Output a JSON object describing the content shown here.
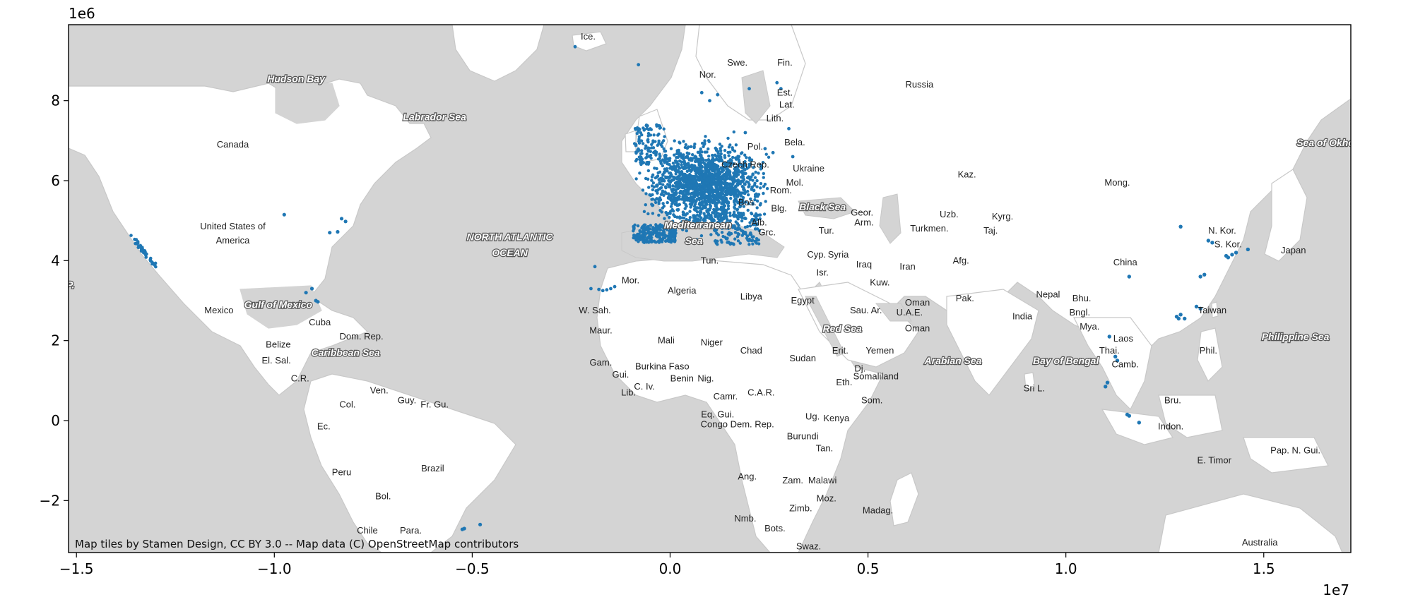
{
  "map": {
    "attribution": "Map tiles by Stamen Design, CC BY 3.0 -- Map data (C) OpenStreetMap contributors",
    "x_offset_text": "1e7",
    "y_offset_text": "1e6",
    "xlim": [
      -1.52,
      1.72
    ],
    "ylim": [
      -3.3,
      9.9
    ],
    "colors": {
      "ocean": "#d4d4d4",
      "land": "#ffffff",
      "border": "#c8c8c8",
      "points": "#1f77b4"
    },
    "x_ticks": [
      {
        "value": -1.5,
        "label": "−1.5"
      },
      {
        "value": -1.0,
        "label": "−1.0"
      },
      {
        "value": -0.5,
        "label": "−0.5"
      },
      {
        "value": 0.0,
        "label": "0.0"
      },
      {
        "value": 0.5,
        "label": "0.5"
      },
      {
        "value": 1.0,
        "label": "1.0"
      },
      {
        "value": 1.5,
        "label": "1.5"
      }
    ],
    "y_ticks": [
      {
        "value": 8,
        "label": "8"
      },
      {
        "value": 6,
        "label": "6"
      },
      {
        "value": 4,
        "label": "4"
      },
      {
        "value": 2,
        "label": "2"
      },
      {
        "value": 0,
        "label": "0"
      },
      {
        "value": -2,
        "label": "−2"
      }
    ],
    "country_labels": [
      {
        "text": "Ice.",
        "x": -0.207,
        "y": 9.6
      },
      {
        "text": "Nor.",
        "x": 0.095,
        "y": 8.65
      },
      {
        "text": "Swe.",
        "x": 0.17,
        "y": 8.95
      },
      {
        "text": "Fin.",
        "x": 0.29,
        "y": 8.95
      },
      {
        "text": "Russia",
        "x": 0.63,
        "y": 8.4
      },
      {
        "text": "Est.",
        "x": 0.29,
        "y": 8.2
      },
      {
        "text": "Lat.",
        "x": 0.295,
        "y": 7.9
      },
      {
        "text": "Lith.",
        "x": 0.265,
        "y": 7.55
      },
      {
        "text": "Canada",
        "x": -1.105,
        "y": 6.9
      },
      {
        "text": "Pol.",
        "x": 0.215,
        "y": 6.85
      },
      {
        "text": "Bela.",
        "x": 0.315,
        "y": 6.95
      },
      {
        "text": "Czech Rep.",
        "x": 0.19,
        "y": 6.4
      },
      {
        "text": "Ukraine",
        "x": 0.35,
        "y": 6.3
      },
      {
        "text": "Mol.",
        "x": 0.315,
        "y": 5.95
      },
      {
        "text": "Rom.",
        "x": 0.28,
        "y": 5.75
      },
      {
        "text": "Bos.",
        "x": 0.195,
        "y": 5.45
      },
      {
        "text": "Blg.",
        "x": 0.275,
        "y": 5.3
      },
      {
        "text": "Alb.",
        "x": 0.225,
        "y": 4.95
      },
      {
        "text": "Grc.",
        "x": 0.245,
        "y": 4.7
      },
      {
        "text": "Kaz.",
        "x": 0.75,
        "y": 6.15
      },
      {
        "text": "Mong.",
        "x": 1.13,
        "y": 5.95
      },
      {
        "text": "Geor.",
        "x": 0.485,
        "y": 5.2
      },
      {
        "text": "Arm.",
        "x": 0.49,
        "y": 4.95
      },
      {
        "text": "Uzb.",
        "x": 0.705,
        "y": 5.15
      },
      {
        "text": "Kyrg.",
        "x": 0.84,
        "y": 5.1
      },
      {
        "text": "Turkmen.",
        "x": 0.655,
        "y": 4.8
      },
      {
        "text": "Taj.",
        "x": 0.81,
        "y": 4.75
      },
      {
        "text": "Tur.",
        "x": 0.395,
        "y": 4.75
      },
      {
        "text": "Cyp.",
        "x": 0.37,
        "y": 4.15
      },
      {
        "text": "Syria",
        "x": 0.425,
        "y": 4.15
      },
      {
        "text": "Isr.",
        "x": 0.385,
        "y": 3.7
      },
      {
        "text": "Iraq",
        "x": 0.49,
        "y": 3.9
      },
      {
        "text": "Iran",
        "x": 0.6,
        "y": 3.85
      },
      {
        "text": "Afg.",
        "x": 0.735,
        "y": 4.0
      },
      {
        "text": "Kuw.",
        "x": 0.53,
        "y": 3.45
      },
      {
        "text": "Pak.",
        "x": 0.745,
        "y": 3.05
      },
      {
        "text": "China",
        "x": 1.15,
        "y": 3.95
      },
      {
        "text": "N. Kor.",
        "x": 1.395,
        "y": 4.75
      },
      {
        "text": "S. Kor.",
        "x": 1.41,
        "y": 4.4
      },
      {
        "text": "Japan",
        "x": 1.575,
        "y": 4.25
      },
      {
        "text": "United States of",
        "x": -1.105,
        "y": 4.85
      },
      {
        "text": "America",
        "x": -1.105,
        "y": 4.5
      },
      {
        "text": "Mor.",
        "x": -0.1,
        "y": 3.5
      },
      {
        "text": "Algeria",
        "x": 0.03,
        "y": 3.25
      },
      {
        "text": "Libya",
        "x": 0.205,
        "y": 3.1
      },
      {
        "text": "Egypt",
        "x": 0.335,
        "y": 3.0
      },
      {
        "text": "Tun.",
        "x": 0.1,
        "y": 4.0
      },
      {
        "text": "Sau. Ar.",
        "x": 0.495,
        "y": 2.75
      },
      {
        "text": "Oman",
        "x": 0.625,
        "y": 2.95
      },
      {
        "text": "U.A.E.",
        "x": 0.605,
        "y": 2.7
      },
      {
        "text": "Oman",
        "x": 0.625,
        "y": 2.3
      },
      {
        "text": "Yemen",
        "x": 0.53,
        "y": 1.75
      },
      {
        "text": "Nepal",
        "x": 0.955,
        "y": 3.15
      },
      {
        "text": "Bhu.",
        "x": 1.04,
        "y": 3.05
      },
      {
        "text": "India",
        "x": 0.89,
        "y": 2.6
      },
      {
        "text": "Bngl.",
        "x": 1.035,
        "y": 2.7
      },
      {
        "text": "Mya.",
        "x": 1.06,
        "y": 2.35
      },
      {
        "text": "Laos",
        "x": 1.145,
        "y": 2.05
      },
      {
        "text": "Thai.",
        "x": 1.11,
        "y": 1.75
      },
      {
        "text": "Camb.",
        "x": 1.15,
        "y": 1.4
      },
      {
        "text": "Taiwan",
        "x": 1.37,
        "y": 2.75
      },
      {
        "text": "Phil.",
        "x": 1.36,
        "y": 1.75
      },
      {
        "text": "Sri L.",
        "x": 0.92,
        "y": 0.8
      },
      {
        "text": "Bru.",
        "x": 1.27,
        "y": 0.5
      },
      {
        "text": "Indon.",
        "x": 1.265,
        "y": -0.15
      },
      {
        "text": "E. Timor",
        "x": 1.375,
        "y": -1.0
      },
      {
        "text": "Pap. N. Gui.",
        "x": 1.58,
        "y": -0.75
      },
      {
        "text": "Australia",
        "x": 1.49,
        "y": -3.05
      },
      {
        "text": "Mexico",
        "x": -1.14,
        "y": 2.75
      },
      {
        "text": "Cuba",
        "x": -0.885,
        "y": 2.45
      },
      {
        "text": "Dom. Rep.",
        "x": -0.78,
        "y": 2.1
      },
      {
        "text": "Belize",
        "x": -0.99,
        "y": 1.9
      },
      {
        "text": "El. Sal.",
        "x": -0.995,
        "y": 1.5
      },
      {
        "text": "C.R.",
        "x": -0.935,
        "y": 1.05
      },
      {
        "text": "Ven.",
        "x": -0.735,
        "y": 0.75
      },
      {
        "text": "Guy.",
        "x": -0.665,
        "y": 0.5
      },
      {
        "text": "Fr. Gu.",
        "x": -0.595,
        "y": 0.4
      },
      {
        "text": "Col.",
        "x": -0.815,
        "y": 0.4
      },
      {
        "text": "Ec.",
        "x": -0.875,
        "y": -0.15
      },
      {
        "text": "Brazil",
        "x": -0.6,
        "y": -1.2
      },
      {
        "text": "Peru",
        "x": -0.83,
        "y": -1.3
      },
      {
        "text": "Bol.",
        "x": -0.725,
        "y": -1.9
      },
      {
        "text": "Chile",
        "x": -0.765,
        "y": -2.75
      },
      {
        "text": "Para.",
        "x": -0.655,
        "y": -2.75
      },
      {
        "text": "W. Sah.",
        "x": -0.19,
        "y": 2.75
      },
      {
        "text": "Maur.",
        "x": -0.175,
        "y": 2.25
      },
      {
        "text": "Mali",
        "x": -0.01,
        "y": 2.0
      },
      {
        "text": "Niger",
        "x": 0.105,
        "y": 1.95
      },
      {
        "text": "Chad",
        "x": 0.205,
        "y": 1.75
      },
      {
        "text": "Sudan",
        "x": 0.335,
        "y": 1.55
      },
      {
        "text": "Erit.",
        "x": 0.43,
        "y": 1.75
      },
      {
        "text": "Gam.",
        "x": -0.175,
        "y": 1.45
      },
      {
        "text": "Burkina Faso",
        "x": -0.02,
        "y": 1.35
      },
      {
        "text": "Gui.",
        "x": -0.125,
        "y": 1.15
      },
      {
        "text": "Benin",
        "x": 0.03,
        "y": 1.05
      },
      {
        "text": "Nig.",
        "x": 0.09,
        "y": 1.05
      },
      {
        "text": "C. Iv.",
        "x": -0.065,
        "y": 0.85
      },
      {
        "text": "Lib.",
        "x": -0.105,
        "y": 0.7
      },
      {
        "text": "Dj.",
        "x": 0.48,
        "y": 1.3
      },
      {
        "text": "Somaliland",
        "x": 0.52,
        "y": 1.1
      },
      {
        "text": "Eth.",
        "x": 0.44,
        "y": 0.95
      },
      {
        "text": "Som.",
        "x": 0.51,
        "y": 0.5
      },
      {
        "text": "Camr.",
        "x": 0.14,
        "y": 0.6
      },
      {
        "text": "C.A.R.",
        "x": 0.23,
        "y": 0.7
      },
      {
        "text": "Ug.",
        "x": 0.36,
        "y": 0.1
      },
      {
        "text": "Kenya",
        "x": 0.42,
        "y": 0.05
      },
      {
        "text": "Eq. Gui.",
        "x": 0.12,
        "y": 0.15
      },
      {
        "text": "Congo Dem. Rep.",
        "x": 0.17,
        "y": -0.1
      },
      {
        "text": "Burundi",
        "x": 0.335,
        "y": -0.4
      },
      {
        "text": "Tan.",
        "x": 0.39,
        "y": -0.7
      },
      {
        "text": "Ang.",
        "x": 0.195,
        "y": -1.4
      },
      {
        "text": "Zam.",
        "x": 0.31,
        "y": -1.5
      },
      {
        "text": "Malawi",
        "x": 0.385,
        "y": -1.5
      },
      {
        "text": "Moz.",
        "x": 0.395,
        "y": -1.95
      },
      {
        "text": "Zimb.",
        "x": 0.33,
        "y": -2.2
      },
      {
        "text": "Madag.",
        "x": 0.525,
        "y": -2.25
      },
      {
        "text": "Nmb.",
        "x": 0.19,
        "y": -2.45
      },
      {
        "text": "Bots.",
        "x": 0.265,
        "y": -2.7
      },
      {
        "text": "Swaz.",
        "x": 0.35,
        "y": -3.15
      }
    ],
    "sea_labels": [
      {
        "text": "Hudson Bay",
        "x": -0.945,
        "y": 8.55
      },
      {
        "text": "Labrador Sea",
        "x": -0.595,
        "y": 7.6
      },
      {
        "text": "NORTH ATLANTIC",
        "x": -0.405,
        "y": 4.6
      },
      {
        "text": "OCEAN",
        "x": -0.405,
        "y": 4.2
      },
      {
        "text": "Gulf of Mexico",
        "x": -0.99,
        "y": 2.9
      },
      {
        "text": "Caribbean Sea",
        "x": -0.82,
        "y": 1.7
      },
      {
        "text": "Black Sea",
        "x": 0.385,
        "y": 5.35
      },
      {
        "text": "Mediterranean",
        "x": 0.07,
        "y": 4.9
      },
      {
        "text": "Sea",
        "x": 0.06,
        "y": 4.5
      },
      {
        "text": "Red Sea",
        "x": 0.435,
        "y": 2.3
      },
      {
        "text": "Arabian Sea",
        "x": 0.715,
        "y": 1.5
      },
      {
        "text": "Bay of Bengal",
        "x": 1.0,
        "y": 1.5
      },
      {
        "text": "Philippine Sea",
        "x": 1.58,
        "y": 2.1
      },
      {
        "text": "Sea of Okhot",
        "x": 1.66,
        "y": 6.95
      },
      {
        "text": "P.",
        "x": -1.515,
        "y": 3.4
      }
    ]
  }
}
